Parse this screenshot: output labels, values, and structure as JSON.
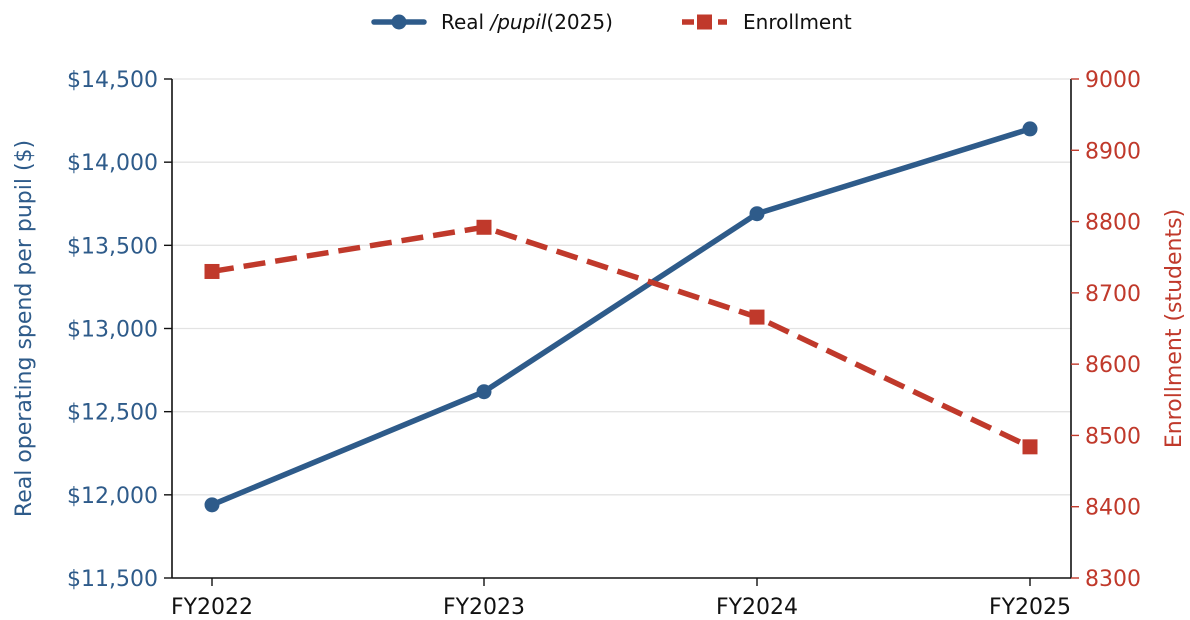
{
  "chart_data": {
    "type": "line",
    "title": "",
    "categories": [
      "FY2022",
      "FY2023",
      "FY2024",
      "FY2025"
    ],
    "y_left": {
      "label": "Real operating spend per pupil ($)",
      "range": [
        11500,
        14500
      ],
      "ticks": [
        11500,
        12000,
        12500,
        13000,
        13500,
        14000,
        14500
      ],
      "tick_labels": [
        "$11,500",
        "$12,000",
        "$12,500",
        "$13,000",
        "$13,500",
        "$14,000",
        "$14,500"
      ],
      "color": "#2e5b8a"
    },
    "y_right": {
      "label": "Enrollment (students)",
      "range": [
        8300,
        9000
      ],
      "ticks": [
        8300,
        8400,
        8500,
        8600,
        8700,
        8800,
        8900,
        9000
      ],
      "tick_labels": [
        "8300",
        "8400",
        "8500",
        "8600",
        "8700",
        "8800",
        "8900",
        "9000"
      ],
      "color": "#c0392b"
    },
    "series": [
      {
        "name": "Real /pupil(2025)",
        "legend_parts": [
          "Real ",
          "/pupil",
          "(2025)"
        ],
        "axis": "left",
        "values": [
          11940,
          12620,
          13690,
          14200
        ],
        "color": "#2e5b8a",
        "marker": "circle",
        "line_style": "solid"
      },
      {
        "name": "Enrollment",
        "axis": "right",
        "values": [
          8730,
          8792,
          8666,
          8484
        ],
        "color": "#c0392b",
        "marker": "square",
        "line_style": "dashed"
      }
    ],
    "grid": "horizontal",
    "legend_position": "top-center"
  }
}
